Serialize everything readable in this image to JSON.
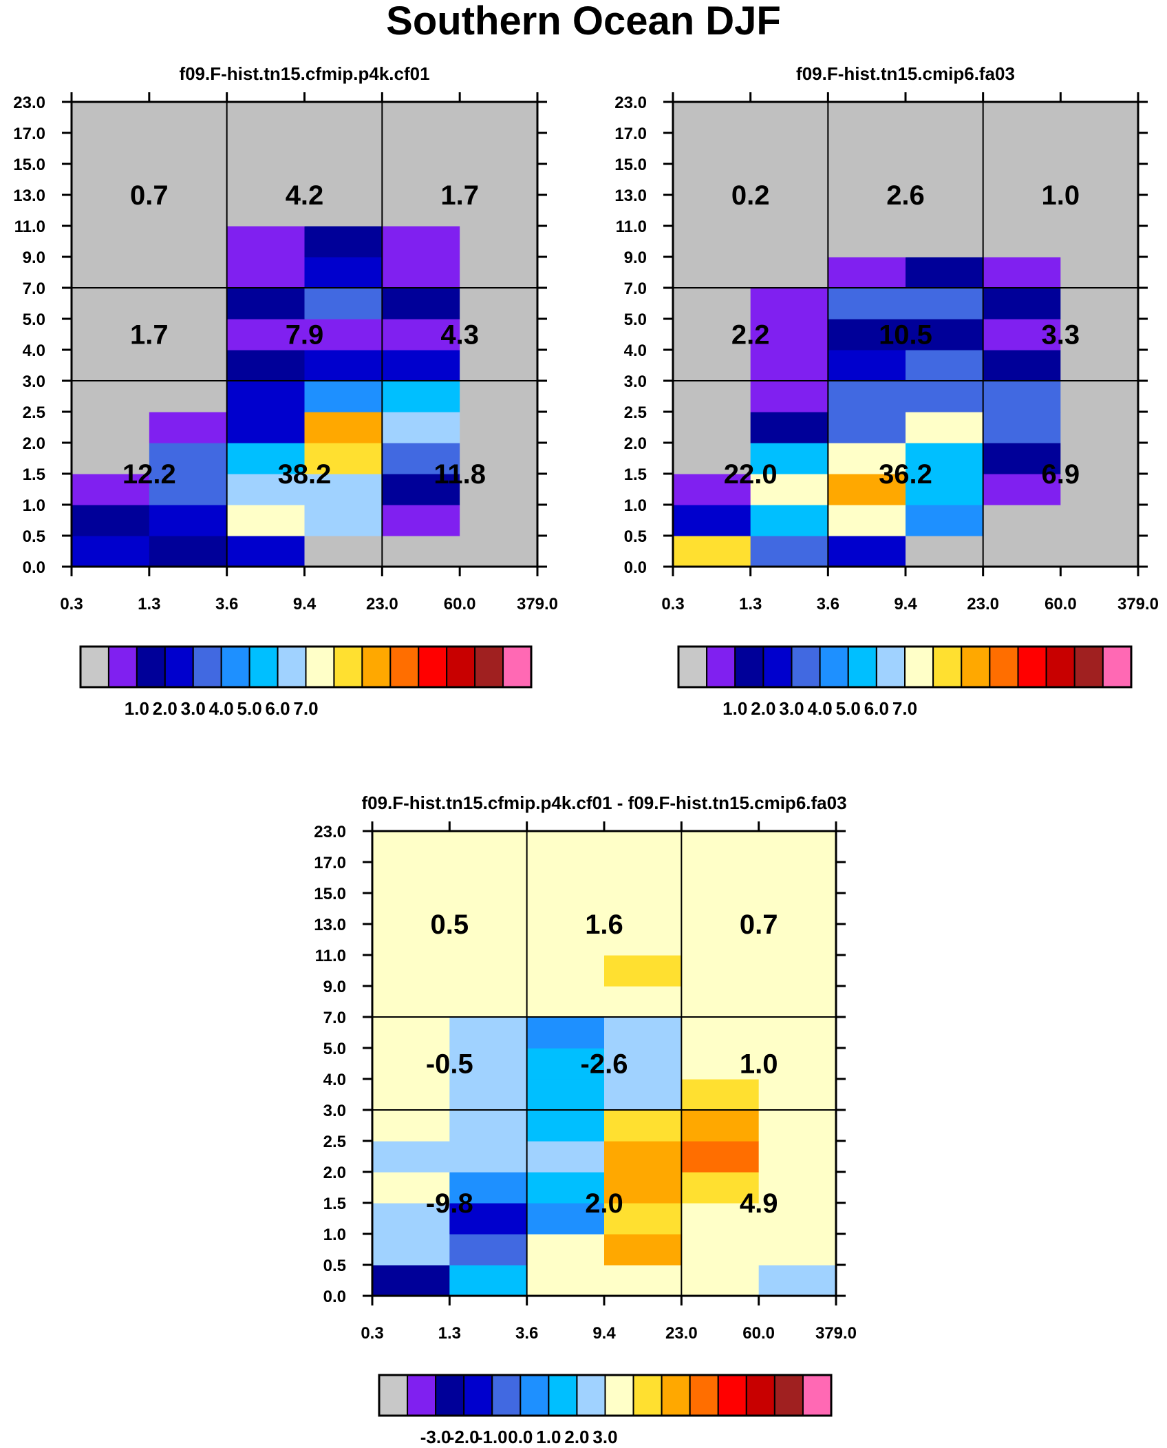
{
  "title": "Southern Ocean DJF",
  "palette": [
    "#c0c0c0",
    "#8020f0",
    "#000099",
    "#0000cd",
    "#4169e1",
    "#1e90ff",
    "#00bfff",
    "#a0d2ff",
    "#ffffc8",
    "#ffe030",
    "#ffa800",
    "#ff6e00",
    "#ff0000",
    "#c80000",
    "#a02020",
    "#ff69b4"
  ],
  "colorbar_gray": "#c8c8c8",
  "chart_data": [
    {
      "type": "heatmap",
      "title": "f09.F-hist.tn15.cfmip.p4k.cf01",
      "x_ticks": [
        "0.3",
        "1.3",
        "3.6",
        "9.4",
        "23.0",
        "60.0",
        "379.0"
      ],
      "y_ticks": [
        "0.0",
        "0.5",
        "1.0",
        "1.5",
        "2.0",
        "2.5",
        "3.0",
        "4.0",
        "5.0",
        "7.0",
        "9.0",
        "11.0",
        "13.0",
        "15.0",
        "17.0",
        "23.0"
      ],
      "grid_color_index_rows_bottom_up": [
        [
          3,
          2,
          3,
          0,
          0,
          0
        ],
        [
          2,
          3,
          8,
          7,
          1,
          0
        ],
        [
          1,
          4,
          7,
          7,
          2,
          0
        ],
        [
          0,
          4,
          6,
          9,
          4,
          0
        ],
        [
          0,
          1,
          3,
          10,
          7,
          0
        ],
        [
          0,
          0,
          3,
          5,
          6,
          0
        ],
        [
          0,
          0,
          2,
          3,
          3,
          0
        ],
        [
          0,
          0,
          1,
          1,
          1,
          0
        ],
        [
          0,
          0,
          2,
          4,
          2,
          0
        ],
        [
          0,
          0,
          1,
          3,
          1,
          0
        ],
        [
          0,
          0,
          1,
          2,
          1,
          0
        ],
        [
          0,
          0,
          0,
          0,
          0,
          0
        ],
        [
          0,
          0,
          0,
          0,
          0,
          0
        ],
        [
          0,
          0,
          0,
          0,
          0,
          0
        ],
        [
          0,
          0,
          0,
          0,
          0,
          0
        ]
      ],
      "region_values_top_down": [
        [
          0.7,
          4.2,
          1.7
        ],
        [
          1.7,
          7.9,
          4.3
        ],
        [
          12.2,
          38.2,
          11.8
        ]
      ],
      "colorbar_labels": [
        "1.0",
        "2.0",
        "3.0",
        "4.0",
        "5.0",
        "6.0",
        "7.0"
      ],
      "background_index": 0
    },
    {
      "type": "heatmap",
      "title": "f09.F-hist.tn15.cmip6.fa03",
      "x_ticks": [
        "0.3",
        "1.3",
        "3.6",
        "9.4",
        "23.0",
        "60.0",
        "379.0"
      ],
      "y_ticks": [
        "0.0",
        "0.5",
        "1.0",
        "1.5",
        "2.0",
        "2.5",
        "3.0",
        "4.0",
        "5.0",
        "7.0",
        "9.0",
        "11.0",
        "13.0",
        "15.0",
        "17.0",
        "23.0"
      ],
      "grid_color_index_rows_bottom_up": [
        [
          9,
          4,
          3,
          0,
          0,
          0
        ],
        [
          3,
          6,
          8,
          5,
          0,
          0
        ],
        [
          1,
          8,
          10,
          6,
          1,
          0
        ],
        [
          0,
          6,
          8,
          6,
          2,
          0
        ],
        [
          0,
          2,
          4,
          8,
          4,
          0
        ],
        [
          0,
          1,
          4,
          4,
          4,
          0
        ],
        [
          0,
          1,
          3,
          4,
          2,
          0
        ],
        [
          0,
          1,
          2,
          2,
          1,
          0
        ],
        [
          0,
          1,
          4,
          4,
          2,
          0
        ],
        [
          0,
          0,
          1,
          2,
          1,
          0
        ],
        [
          0,
          0,
          0,
          0,
          0,
          0
        ],
        [
          0,
          0,
          0,
          0,
          0,
          0
        ],
        [
          0,
          0,
          0,
          0,
          0,
          0
        ],
        [
          0,
          0,
          0,
          0,
          0,
          0
        ],
        [
          0,
          0,
          0,
          0,
          0,
          0
        ]
      ],
      "region_values_top_down": [
        [
          0.2,
          2.6,
          1.0
        ],
        [
          2.2,
          10.5,
          3.3
        ],
        [
          22.0,
          36.2,
          6.9
        ]
      ],
      "colorbar_labels": [
        "1.0",
        "2.0",
        "3.0",
        "4.0",
        "5.0",
        "6.0",
        "7.0"
      ],
      "background_index": 0
    },
    {
      "type": "heatmap",
      "title": "f09.F-hist.tn15.cfmip.p4k.cf01 - f09.F-hist.tn15.cmip6.fa03",
      "x_ticks": [
        "0.3",
        "1.3",
        "3.6",
        "9.4",
        "23.0",
        "60.0",
        "379.0"
      ],
      "y_ticks": [
        "0.0",
        "0.5",
        "1.0",
        "1.5",
        "2.0",
        "2.5",
        "3.0",
        "4.0",
        "5.0",
        "7.0",
        "9.0",
        "11.0",
        "13.0",
        "15.0",
        "17.0",
        "23.0"
      ],
      "grid_color_index_rows_bottom_up": [
        [
          2,
          6,
          8,
          8,
          8,
          7
        ],
        [
          7,
          4,
          8,
          10,
          8,
          8
        ],
        [
          7,
          3,
          5,
          9,
          8,
          8
        ],
        [
          8,
          5,
          6,
          10,
          9,
          8
        ],
        [
          7,
          7,
          7,
          10,
          11,
          8
        ],
        [
          8,
          7,
          6,
          9,
          10,
          8
        ],
        [
          8,
          7,
          6,
          7,
          9,
          8
        ],
        [
          8,
          7,
          6,
          7,
          8,
          8
        ],
        [
          8,
          7,
          5,
          7,
          8,
          8
        ],
        [
          8,
          8,
          8,
          8,
          8,
          8
        ],
        [
          8,
          8,
          8,
          9,
          8,
          8
        ],
        [
          8,
          8,
          8,
          8,
          8,
          8
        ],
        [
          8,
          8,
          8,
          8,
          8,
          8
        ],
        [
          8,
          8,
          8,
          8,
          8,
          8
        ],
        [
          8,
          8,
          8,
          8,
          8,
          8
        ]
      ],
      "region_values_top_down": [
        [
          0.5,
          1.6,
          0.7
        ],
        [
          -0.5,
          -2.6,
          1.0
        ],
        [
          -9.8,
          2.0,
          4.9
        ]
      ],
      "colorbar_labels": [
        "-3.0",
        "-2.0",
        "-1.0",
        "0.0",
        "1.0",
        "2.0",
        "3.0"
      ],
      "background_index": 8
    }
  ]
}
